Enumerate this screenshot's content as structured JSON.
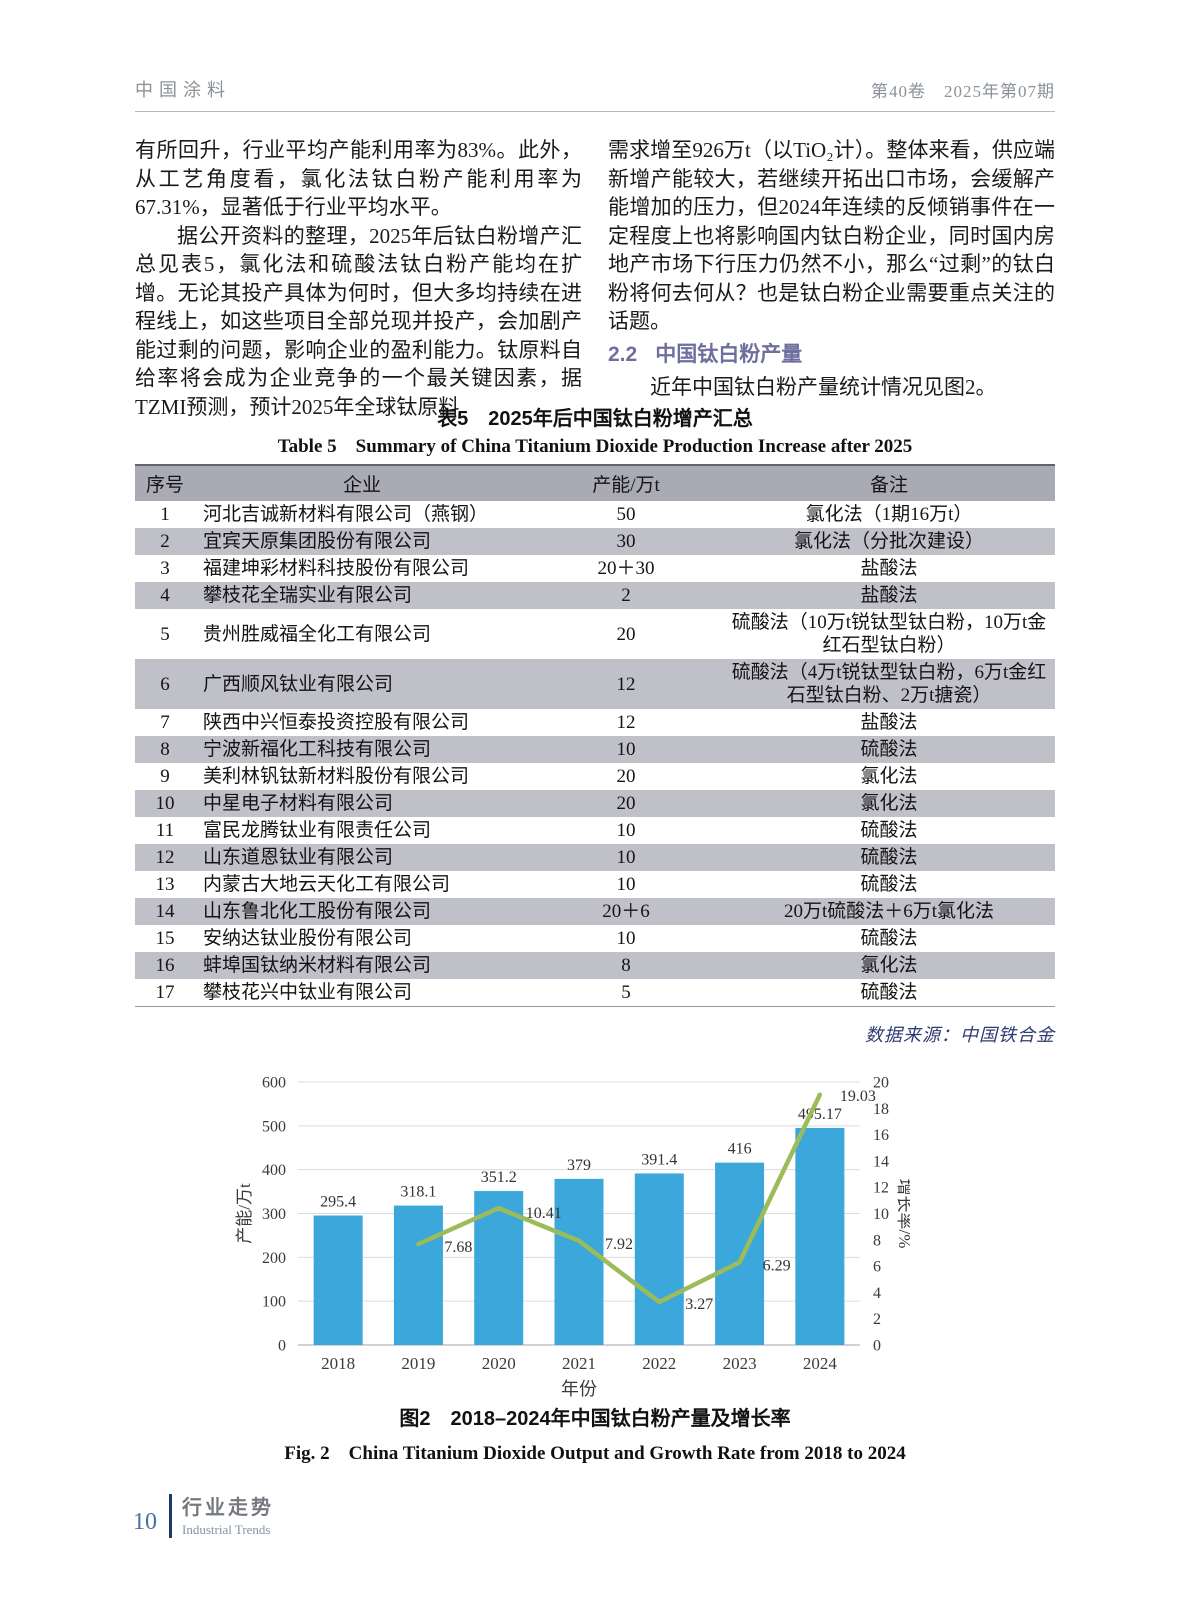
{
  "page_header": {
    "journal": "中国涂料",
    "issue": "第40卷　2025年第07期"
  },
  "article": {
    "left_column": {
      "para1": "有所回升，行业平均产能利用率为83%。此外，从工艺角度看，氯化法钛白粉产能利用率为67.31%，显著低于行业平均水平。",
      "para2": "据公开资料的整理，2025年后钛白粉增产汇总见表5，氯化法和硫酸法钛白粉产能均在扩增。无论其投产具体为何时，但大多均持续在进程线上，如这些项目全部兑现并投产，会加剧产能过剩的问题，影响企业的盈利能力。钛原料自给率将会成为企业竞争的一个最关键因素，据TZMI预测，预计2025年全球钛原料"
    },
    "right_column": {
      "para1": "需求增至926万t（以TiO₂计）。整体来看，供应端新增产能较大，若继续开拓出口市场，会缓解产能增加的压力，但2024年连续的反倾销事件在一定程度上也将影响国内钛白粉企业，同时国内房地产市场下行压力仍然不小，那么“过剩”的钛白粉将何去何从？也是钛白粉企业需要重点关注的话题。",
      "section_number": "2.2",
      "section_title": "中国钛白粉产量",
      "para2": "近年中国钛白粉产量统计情况见图2。"
    }
  },
  "table5": {
    "title_cn": "表5　2025年后中国钛白粉增产汇总",
    "title_en": "Table 5　Summary of China Titanium Dioxide Production Increase after 2025",
    "headers": [
      "序号",
      "企业",
      "产能/万t",
      "备注"
    ],
    "rows": [
      [
        "1",
        "河北吉诚新材料有限公司（燕钢）",
        "50",
        "氯化法（1期16万t）"
      ],
      [
        "2",
        "宜宾天原集团股份有限公司",
        "30",
        "氯化法（分批次建设）"
      ],
      [
        "3",
        "福建坤彩材料科技股份有限公司",
        "20＋30",
        "盐酸法"
      ],
      [
        "4",
        "攀枝花全瑞实业有限公司",
        "2",
        "盐酸法"
      ],
      [
        "5",
        "贵州胜威福全化工有限公司",
        "20",
        "硫酸法（10万t锐钛型钛白粉，10万t金红石型钛白粉）"
      ],
      [
        "6",
        "广西顺风钛业有限公司",
        "12",
        "硫酸法（4万t锐钛型钛白粉，6万t金红石型钛白粉、2万t搪瓷）"
      ],
      [
        "7",
        "陕西中兴恒泰投资控股有限公司",
        "12",
        "盐酸法"
      ],
      [
        "8",
        "宁波新福化工科技有限公司",
        "10",
        "硫酸法"
      ],
      [
        "9",
        "美利林钒钛新材料股份有限公司",
        "20",
        "氯化法"
      ],
      [
        "10",
        "中星电子材料有限公司",
        "20",
        "氯化法"
      ],
      [
        "11",
        "富民龙腾钛业有限责任公司",
        "10",
        "硫酸法"
      ],
      [
        "12",
        "山东道恩钛业有限公司",
        "10",
        "硫酸法"
      ],
      [
        "13",
        "内蒙古大地云天化工有限公司",
        "10",
        "硫酸法"
      ],
      [
        "14",
        "山东鲁北化工股份有限公司",
        "20＋6",
        "20万t硫酸法＋6万t氯化法"
      ],
      [
        "15",
        "安纳达钛业股份有限公司",
        "10",
        "硫酸法"
      ],
      [
        "16",
        "蚌埠国钛纳米材料有限公司",
        "8",
        "氯化法"
      ],
      [
        "17",
        "攀枝花兴中钛业有限公司",
        "5",
        "硫酸法"
      ]
    ],
    "source": "数据来源：中国铁合金"
  },
  "chart_data": {
    "type": "bar",
    "categories": [
      "2018",
      "2019",
      "2020",
      "2021",
      "2022",
      "2023",
      "2024"
    ],
    "series": [
      {
        "name": "产能/万t",
        "type": "bar",
        "values": [
          295.4,
          318.1,
          351.2,
          379,
          391.4,
          416,
          495.17
        ],
        "labels": [
          "295.4",
          "318.1",
          "351.2",
          "379",
          "391.4",
          "416",
          "495.17"
        ],
        "color": "#3BA7DB"
      },
      {
        "name": "增长率/%",
        "type": "line",
        "values": [
          null,
          7.68,
          10.41,
          7.92,
          3.27,
          6.29,
          19.03
        ],
        "labels": [
          null,
          "7.68",
          "10.41",
          "7.92",
          "3.27",
          "6.29",
          "19.03"
        ],
        "color": "#9CBC59"
      }
    ],
    "left_axis": {
      "label": "产能/万t",
      "min": 0,
      "max": 600,
      "step": 100
    },
    "right_axis": {
      "label": "增长率/%",
      "min": 0,
      "max": 20,
      "step": 2
    },
    "xlabel": "年份",
    "grid": true,
    "legend": "none"
  },
  "figure2": {
    "caption_cn": "图2　2018–2024年中国钛白粉产量及增长率",
    "caption_en": "Fig. 2　China Titanium Dioxide Output and Growth Rate from 2018 to 2024"
  },
  "page_footer": {
    "page_number": "10",
    "section_cn": "行业走势",
    "section_en": "Industrial Trends"
  },
  "colors": {
    "bar": "#3BA7DB",
    "line": "#9CBC59",
    "section_heading": "#6f6f9e",
    "table_header_bg": "#a9aab4",
    "table_alt_row_bg": "#c0c0c9",
    "source_note": "#2e3b72",
    "footer_accent": "#1e3a66",
    "header_text": "#8b9198"
  }
}
